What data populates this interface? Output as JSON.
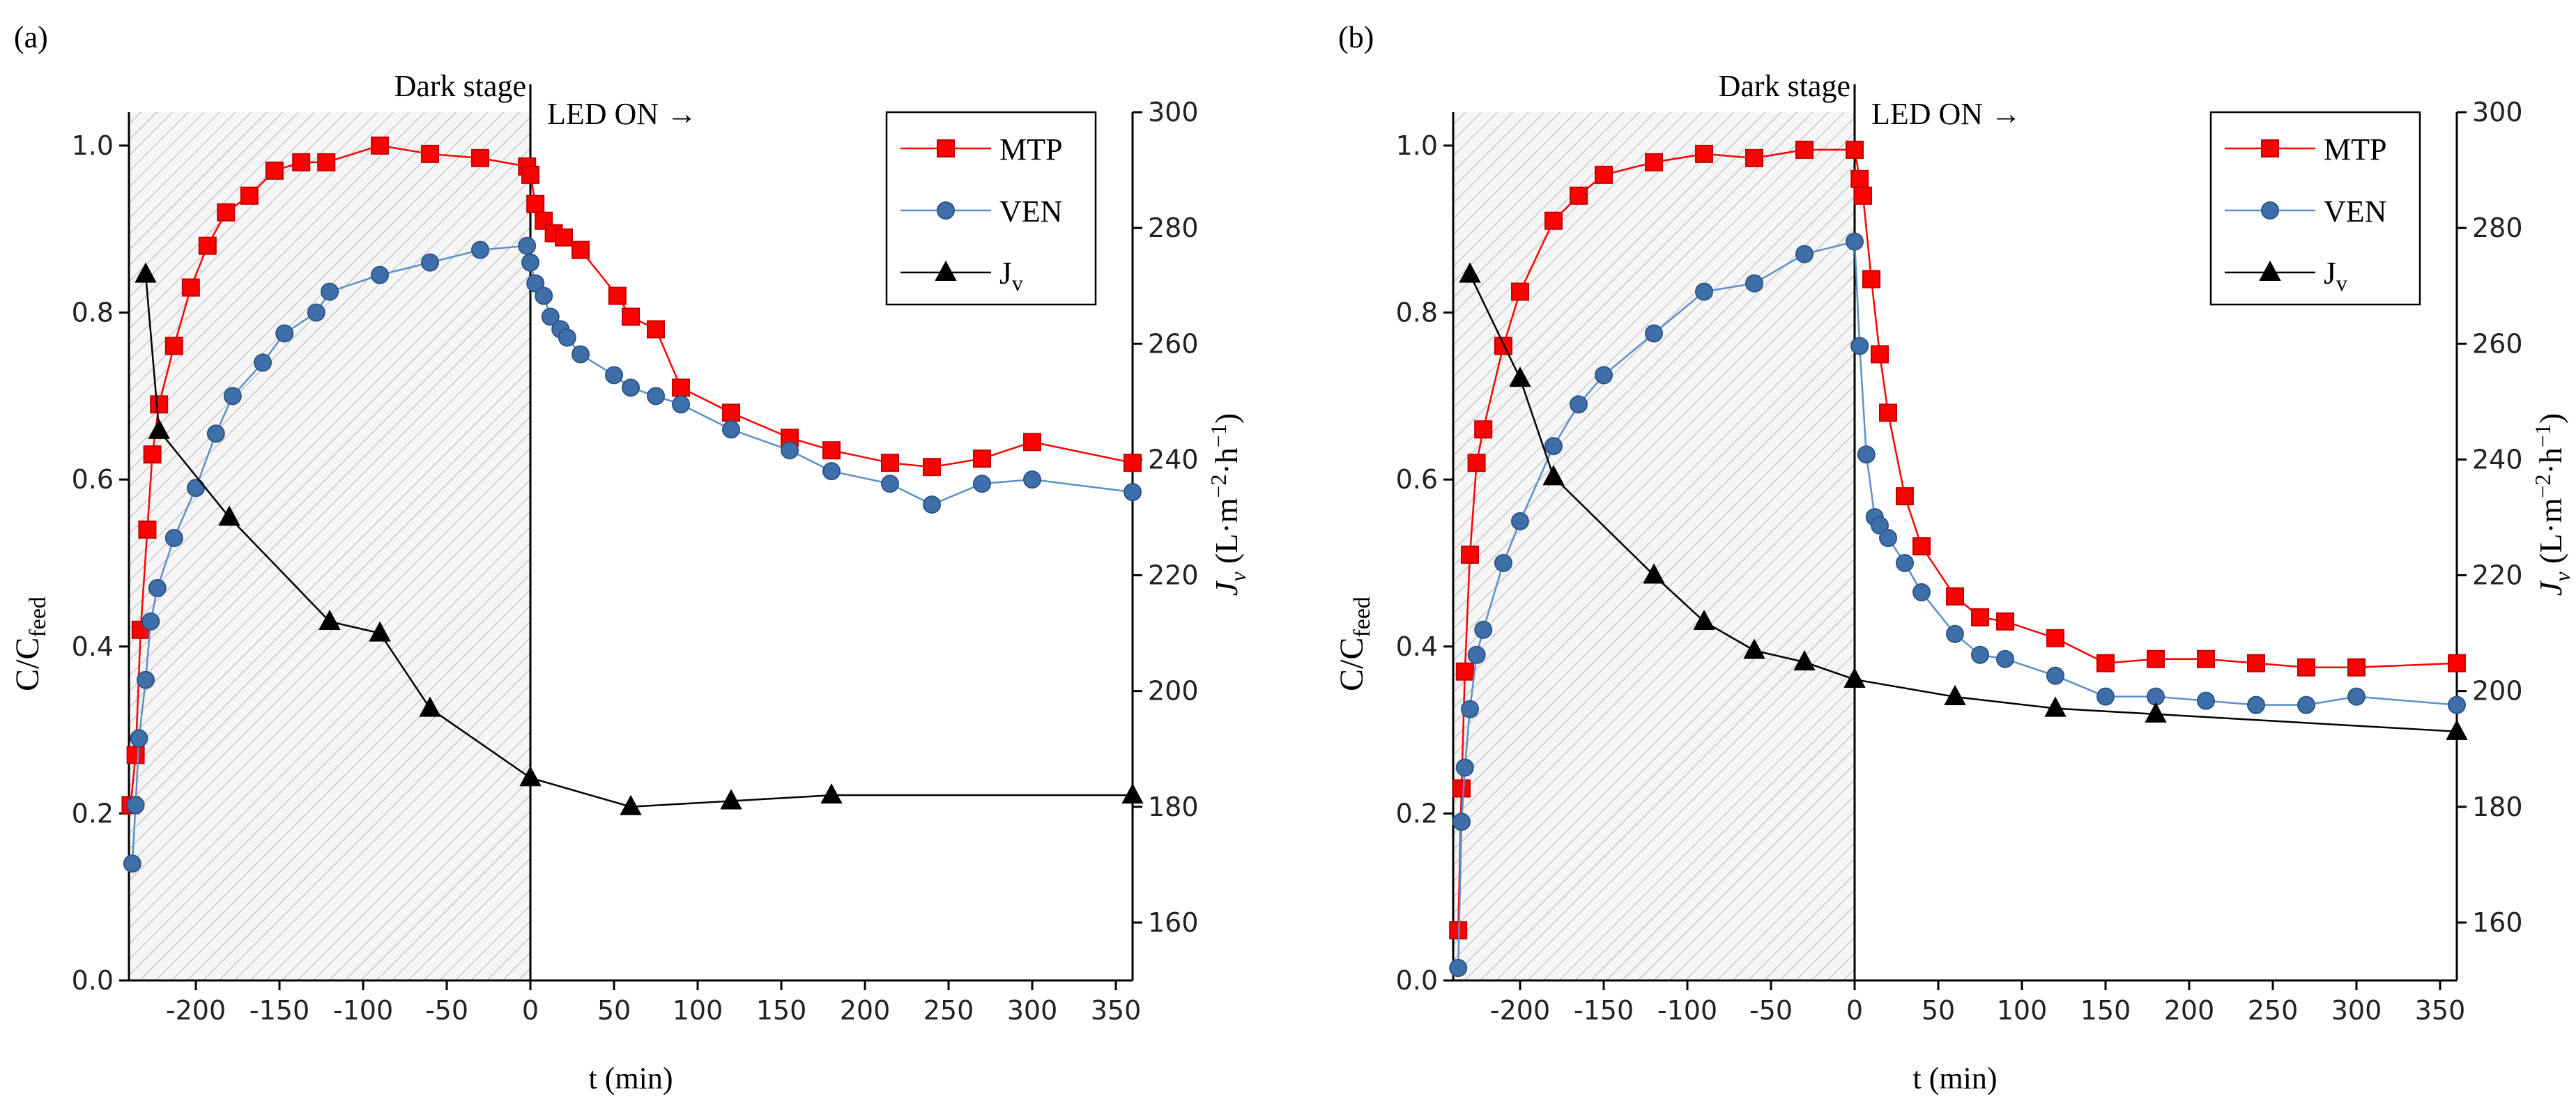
{
  "chart_data": [
    {
      "type": "line",
      "label": "(a)",
      "annotations": [
        "Dark stage",
        "LED ON →"
      ],
      "xlabel": "t (min)",
      "ylabel": [
        "C/C",
        "feed"
      ],
      "y2label": [
        "J",
        "v",
        " (L·m",
        "−2",
        "·h",
        "−1",
        ")"
      ],
      "xlim": [
        -240,
        360
      ],
      "xticks": [
        -200,
        -150,
        -100,
        -50,
        0,
        50,
        100,
        150,
        200,
        250,
        300,
        350
      ],
      "ylim": [
        0,
        1.04
      ],
      "yticks": [
        {
          "value": 0,
          "label": "0.0"
        },
        0.2,
        0.4,
        0.6,
        0.8,
        {
          "value": 1,
          "label": "1.0"
        }
      ],
      "y2lim": [
        150,
        300
      ],
      "y2ticks": [
        160,
        180,
        200,
        220,
        240,
        260,
        280,
        300
      ],
      "series": [
        {
          "name": "MTP",
          "color": "#ff0000",
          "marker": "square",
          "x": [
            -239,
            -236,
            -233,
            -229,
            -226,
            -222,
            -213,
            -203,
            -193,
            -182,
            -168,
            -153,
            -137,
            -122,
            -90,
            -60,
            -30,
            -2,
            0,
            3,
            8,
            14,
            20,
            30,
            52,
            60,
            75,
            90,
            120,
            155,
            180,
            215,
            240,
            270,
            300,
            360
          ],
          "values": [
            0.21,
            0.27,
            0.42,
            0.54,
            0.63,
            0.69,
            0.76,
            0.83,
            0.88,
            0.92,
            0.94,
            0.97,
            0.98,
            0.98,
            1.0,
            0.99,
            0.985,
            0.975,
            0.965,
            0.93,
            0.91,
            0.895,
            0.89,
            0.875,
            0.82,
            0.795,
            0.78,
            0.71,
            0.68,
            0.65,
            0.635,
            0.62,
            0.615,
            0.625,
            0.645,
            0.62
          ]
        },
        {
          "name": "VEN",
          "color": "#3f6fa8",
          "marker": "circle",
          "x": [
            -238,
            -236,
            -234,
            -230,
            -227,
            -223,
            -213,
            -200,
            -188,
            -178,
            -160,
            -147,
            -128,
            -120,
            -90,
            -60,
            -30,
            -2,
            0,
            3,
            8,
            12,
            18,
            22,
            30,
            50,
            60,
            75,
            90,
            120,
            155,
            180,
            215,
            240,
            270,
            300,
            360
          ],
          "values": [
            0.14,
            0.21,
            0.29,
            0.36,
            0.43,
            0.47,
            0.53,
            0.59,
            0.655,
            0.7,
            0.74,
            0.775,
            0.8,
            0.825,
            0.845,
            0.86,
            0.875,
            0.88,
            0.86,
            0.835,
            0.82,
            0.795,
            0.78,
            0.77,
            0.75,
            0.725,
            0.71,
            0.7,
            0.69,
            0.66,
            0.635,
            0.61,
            0.595,
            0.57,
            0.595,
            0.6,
            0.585
          ]
        },
        {
          "name": [
            "J",
            "v"
          ],
          "color": "#000000",
          "marker": "triangle",
          "axis": "y2",
          "x": [
            -230,
            -222,
            -180,
            -120,
            -90,
            -60,
            0,
            60,
            120,
            180,
            360
          ],
          "values": [
            272,
            245,
            230,
            212,
            210,
            197,
            185,
            180,
            181,
            182,
            182
          ]
        }
      ]
    },
    {
      "type": "line",
      "label": "(b)",
      "annotations": [
        "Dark stage",
        "LED ON →"
      ],
      "xlabel": "t (min)",
      "ylabel": [
        "C/C",
        "feed"
      ],
      "y2label": [
        "J",
        "v",
        " (L·m",
        "−2",
        "·h",
        "−1",
        ")"
      ],
      "xlim": [
        -240,
        360
      ],
      "xticks": [
        -200,
        -150,
        -100,
        -50,
        0,
        50,
        100,
        150,
        200,
        250,
        300,
        350
      ],
      "ylim": [
        0,
        1.04
      ],
      "yticks": [
        {
          "value": 0,
          "label": "0.0"
        },
        0.2,
        0.4,
        0.6,
        0.8,
        {
          "value": 1,
          "label": "1.0"
        }
      ],
      "y2lim": [
        150,
        300
      ],
      "y2ticks": [
        160,
        180,
        200,
        220,
        240,
        260,
        280,
        300
      ],
      "series": [
        {
          "name": "MTP",
          "color": "#ff0000",
          "marker": "square",
          "x": [
            -237,
            -235,
            -233,
            -230,
            -226,
            -222,
            -210,
            -200,
            -180,
            -165,
            -150,
            -120,
            -90,
            -60,
            -30,
            0,
            3,
            5,
            10,
            15,
            20,
            30,
            40,
            60,
            75,
            90,
            120,
            150,
            180,
            210,
            240,
            270,
            300,
            360
          ],
          "values": [
            0.06,
            0.23,
            0.37,
            0.51,
            0.62,
            0.66,
            0.76,
            0.825,
            0.91,
            0.94,
            0.965,
            0.98,
            0.99,
            0.985,
            0.995,
            0.995,
            0.96,
            0.94,
            0.84,
            0.75,
            0.68,
            0.58,
            0.52,
            0.46,
            0.435,
            0.43,
            0.41,
            0.38,
            0.385,
            0.385,
            0.38,
            0.375,
            0.375,
            0.38
          ]
        },
        {
          "name": "VEN",
          "color": "#3f6fa8",
          "marker": "circle",
          "x": [
            -237,
            -235,
            -233,
            -230,
            -226,
            -222,
            -210,
            -200,
            -180,
            -165,
            -150,
            -120,
            -90,
            -60,
            -30,
            0,
            3,
            7,
            12,
            15,
            20,
            30,
            40,
            60,
            75,
            90,
            120,
            150,
            180,
            210,
            240,
            270,
            300,
            360
          ],
          "values": [
            0.015,
            0.19,
            0.255,
            0.325,
            0.39,
            0.42,
            0.5,
            0.55,
            0.64,
            0.69,
            0.725,
            0.775,
            0.825,
            0.835,
            0.87,
            0.885,
            0.76,
            0.63,
            0.555,
            0.545,
            0.53,
            0.5,
            0.465,
            0.415,
            0.39,
            0.385,
            0.365,
            0.34,
            0.34,
            0.335,
            0.33,
            0.33,
            0.34,
            0.33
          ]
        },
        {
          "name": [
            "J",
            "v"
          ],
          "color": "#000000",
          "marker": "triangle",
          "axis": "y2",
          "x": [
            -230,
            -200,
            -180,
            -120,
            -90,
            -60,
            -30,
            0,
            60,
            120,
            180,
            360
          ],
          "values": [
            272,
            254,
            237,
            220,
            212,
            207,
            205,
            202,
            199,
            197,
            196,
            193
          ]
        }
      ]
    }
  ]
}
